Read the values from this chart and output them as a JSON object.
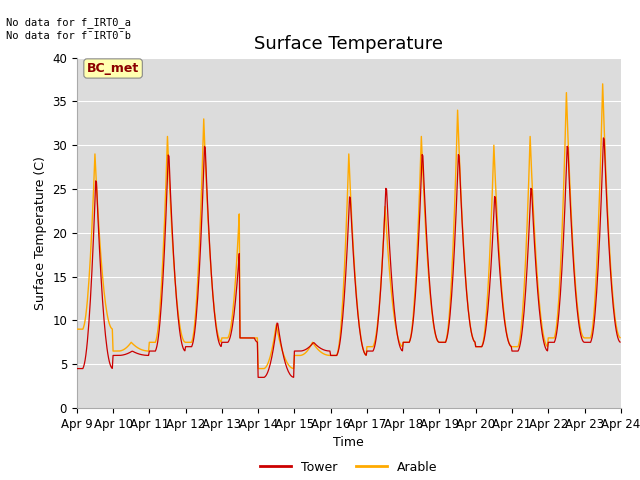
{
  "title": "Surface Temperature",
  "ylabel": "Surface Temperature (C)",
  "xlabel": "Time",
  "ylim": [
    0,
    40
  ],
  "yticks": [
    0,
    5,
    10,
    15,
    20,
    25,
    30,
    35,
    40
  ],
  "xtick_labels": [
    "Apr 9",
    "Apr 10",
    "Apr 11",
    "Apr 12",
    "Apr 13",
    "Apr 14",
    "Apr 15",
    "Apr 16",
    "Apr 17",
    "Apr 18",
    "Apr 19",
    "Apr 20",
    "Apr 21",
    "Apr 22",
    "Apr 23",
    "Apr 24"
  ],
  "tower_color": "#cc0000",
  "arable_color": "#ffaa00",
  "bg_color": "#dcdcdc",
  "no_data_text1": "No data for f_IRT0_a",
  "no_data_text2": "No data for f¯IRT0¯b",
  "bc_met_label": "BC_met",
  "legend_tower": "Tower",
  "legend_arable": "Arable",
  "title_fontsize": 13,
  "label_fontsize": 9,
  "tick_fontsize": 8.5
}
